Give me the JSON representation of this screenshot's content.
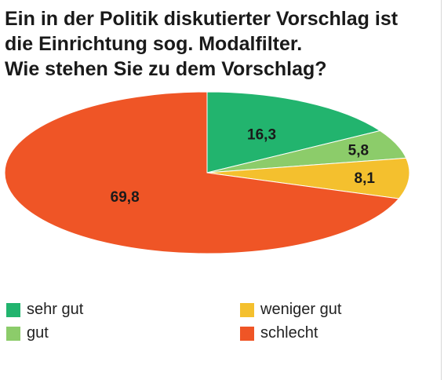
{
  "title_lines": [
    "Ein in der Politik diskutierter Vorschlag ist",
    "die Einrichtung sog. Modalfilter.",
    "Wie stehen Sie zu dem Vorschlag?"
  ],
  "chart_data": {
    "type": "pie",
    "title": "Ein in der Politik diskutierter Vorschlag ist die Einrichtung sog. Modalfilter. Wie stehen Sie zu dem Vorschlag?",
    "categories": [
      "sehr gut",
      "gut",
      "weniger gut",
      "schlecht"
    ],
    "values": [
      16.3,
      5.8,
      8.1,
      69.8
    ],
    "value_labels": [
      "16,3",
      "5,8",
      "8,1",
      "69,8"
    ],
    "colors": [
      "#22b46e",
      "#8ccc6a",
      "#f4c02e",
      "#ef5526"
    ],
    "legend_position": "bottom"
  },
  "legend": [
    {
      "label": "sehr gut",
      "color": "#22b46e"
    },
    {
      "label": "gut",
      "color": "#8ccc6a"
    },
    {
      "label": "weniger gut",
      "color": "#f4c02e"
    },
    {
      "label": "schlecht",
      "color": "#ef5526"
    }
  ]
}
